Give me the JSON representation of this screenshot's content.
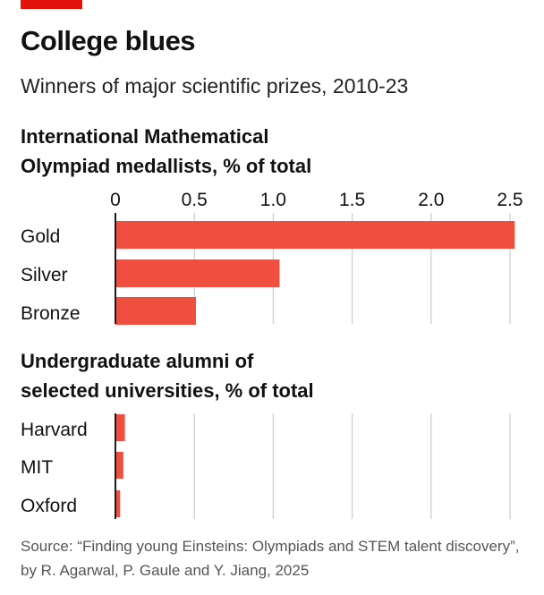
{
  "header": {
    "title": "College blues",
    "subtitle": "Winners of major scientific prizes, 2010-23",
    "accent_color": "#e3120b"
  },
  "source": "Source: “Finding young Einsteins: Olympiads and STEM talent discovery”, by R. Agarwal, P. Gaule and Y. Jiang, 2025",
  "chart_data": [
    {
      "type": "bar",
      "orientation": "horizontal",
      "title_lines": [
        "International Mathematical",
        "Olympiad medallists, % of total"
      ],
      "categories": [
        "Gold",
        "Silver",
        "Bronze"
      ],
      "values": [
        2.53,
        1.04,
        0.51
      ],
      "xlim": [
        0,
        2.5
      ],
      "xticks": [
        "0",
        "0.5",
        "1.0",
        "1.5",
        "2.0",
        "2.5"
      ],
      "grid": true,
      "bar_color": "#f04e3e"
    },
    {
      "type": "bar",
      "orientation": "horizontal",
      "title_lines": [
        "Undergraduate alumni of",
        "selected universities, % of total"
      ],
      "categories": [
        "Harvard",
        "MIT",
        "Oxford"
      ],
      "values": [
        0.06,
        0.05,
        0.03
      ],
      "xlim": [
        0,
        2.5
      ],
      "grid": true,
      "bar_color": "#f04e3e"
    }
  ]
}
